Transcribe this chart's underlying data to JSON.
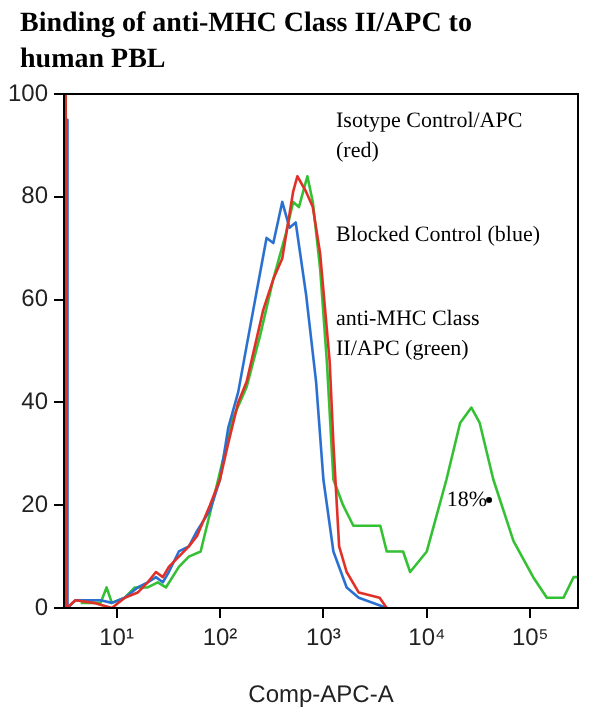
{
  "chart_data": {
    "type": "line",
    "title": "Binding of anti-MHC Class II/APC to human PBL",
    "xlabel": "Comp-APC-A",
    "log": "x",
    "grid": false,
    "legend": false,
    "xlim": [
      3.1,
      290000
    ],
    "xticks": [
      {
        "value": 10,
        "label": "10¹"
      },
      {
        "value": 100,
        "label": "10²"
      },
      {
        "value": 1000,
        "label": "10³"
      },
      {
        "value": 10000,
        "label": "10⁴"
      },
      {
        "value": 100000,
        "label": "10⁵"
      }
    ],
    "ylim": [
      0,
      100
    ],
    "yticks": [
      0,
      20,
      40,
      60,
      80,
      100
    ],
    "series": [
      {
        "color": "#e03028",
        "x": [
          3.2,
          3.22,
          3.3,
          4,
          6,
          9,
          12,
          16,
          20,
          24,
          28,
          32,
          40,
          50,
          60,
          80,
          100,
          120,
          150,
          181,
          262,
          328,
          400,
          510,
          560,
          680,
          790,
          930,
          1150,
          1250,
          1420,
          1680,
          2200,
          3500,
          4100
        ],
        "values": [
          0,
          100,
          0,
          1.5,
          1,
          0,
          2,
          3,
          5,
          7,
          6,
          8,
          10,
          12,
          14,
          20,
          25,
          32,
          40,
          44,
          58,
          64,
          68,
          81,
          84,
          81,
          78,
          69,
          48,
          32,
          12,
          7,
          3,
          2,
          0
        ]
      },
      {
        "color": "#2a70d0",
        "x": [
          3.22,
          3.25,
          3.35,
          4,
          7,
          9,
          12,
          16,
          20,
          24,
          28,
          32,
          40,
          50,
          60,
          80,
          100,
          120,
          150,
          181,
          282,
          328,
          400,
          470,
          540,
          680,
          850,
          1000,
          1250,
          1680,
          2200,
          4100
        ],
        "values": [
          0,
          95,
          0,
          1.5,
          1.5,
          1,
          2,
          4,
          5,
          6,
          5,
          7,
          11,
          12,
          15,
          19,
          25,
          35,
          42,
          51,
          72,
          71,
          79,
          74,
          75,
          61,
          44,
          25,
          11,
          4,
          2,
          0
        ]
      },
      {
        "color": "#33c033",
        "x": [
          4.5,
          7,
          8,
          9,
          12,
          15,
          20,
          25,
          30,
          40,
          50,
          65,
          86,
          134,
          181,
          244,
          328,
          436,
          510,
          580,
          700,
          790,
          930,
          1080,
          1250,
          1550,
          1950,
          3550,
          4100,
          5900,
          6900,
          10000,
          15500,
          21000,
          27000,
          32500,
          44000,
          69000,
          107000,
          145000,
          210000,
          263000,
          285000
        ],
        "values": [
          1,
          1,
          4,
          1,
          2,
          4,
          4,
          5,
          4,
          8,
          10,
          11,
          21,
          37,
          43,
          53,
          64,
          73,
          79,
          78,
          84,
          79,
          66,
          48,
          25,
          20,
          16,
          16,
          11,
          11,
          7,
          11,
          25,
          36,
          39,
          36,
          25,
          13,
          6,
          2,
          2,
          6,
          6
        ]
      }
    ],
    "annotations": [
      "Isotype Control/APC (red)",
      "Blocked Control (blue)",
      "anti-MHC Class II/APC (green)",
      {
        "text": "18%",
        "x": 40000,
        "y": 21
      }
    ]
  }
}
